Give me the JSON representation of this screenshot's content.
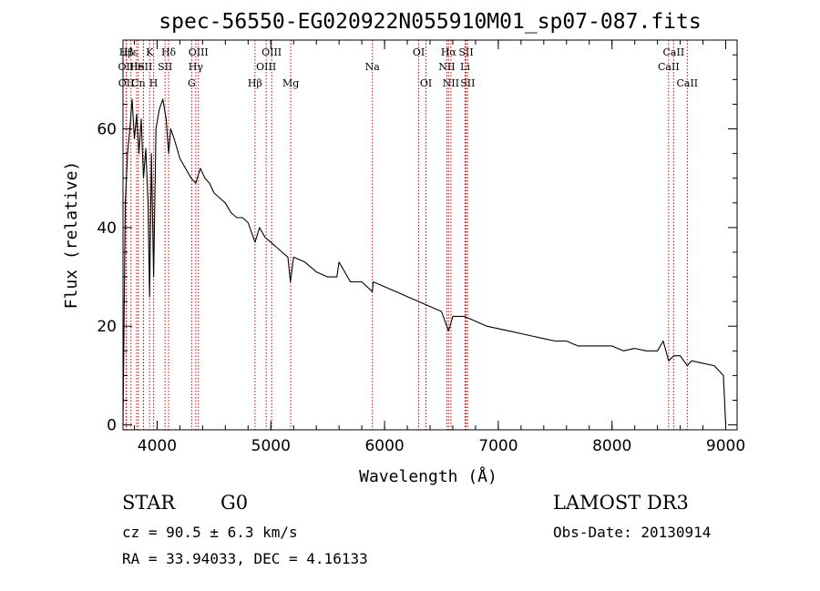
{
  "chart_data": {
    "type": "line",
    "title": "spec-56550-EG020922N055910M01_sp07-087.fits",
    "xlabel": "Wavelength (Å)",
    "ylabel": "Flux (relative)",
    "xlim": [
      3700,
      9100
    ],
    "ylim": [
      -1,
      78
    ],
    "x_ticks": [
      4000,
      5000,
      6000,
      7000,
      8000,
      9000
    ],
    "y_ticks": [
      0,
      20,
      40,
      60
    ],
    "series": [
      {
        "name": "spectrum",
        "x": [
          3700,
          3720,
          3740,
          3760,
          3780,
          3800,
          3820,
          3840,
          3860,
          3880,
          3900,
          3920,
          3934,
          3950,
          3969,
          3990,
          4020,
          4050,
          4080,
          4101,
          4120,
          4150,
          4200,
          4250,
          4300,
          4340,
          4380,
          4420,
          4460,
          4500,
          4550,
          4600,
          4650,
          4700,
          4750,
          4800,
          4861,
          4900,
          4950,
          5000,
          5050,
          5100,
          5150,
          5172,
          5200,
          5300,
          5400,
          5500,
          5580,
          5600,
          5650,
          5700,
          5800,
          5893,
          5900,
          6000,
          6100,
          6200,
          6300,
          6400,
          6500,
          6563,
          6600,
          6700,
          6800,
          6900,
          7000,
          7100,
          7200,
          7300,
          7400,
          7500,
          7600,
          7700,
          7800,
          8000,
          8100,
          8200,
          8300,
          8400,
          8450,
          8498,
          8542,
          8600,
          8662,
          8700,
          8800,
          8900,
          8980,
          9000
        ],
        "y": [
          0,
          45,
          55,
          60,
          66,
          58,
          63,
          55,
          62,
          50,
          56,
          45,
          26,
          55,
          30,
          60,
          64,
          66,
          62,
          55,
          60,
          58,
          54,
          52,
          50,
          49,
          52,
          50,
          49,
          47,
          46,
          45,
          43,
          42,
          42,
          41,
          37,
          40,
          38,
          37,
          36,
          35,
          34,
          29,
          34,
          33,
          31,
          30,
          30,
          33,
          31,
          29,
          29,
          27,
          29,
          28,
          27,
          26,
          25,
          24,
          23,
          19,
          22,
          22,
          21,
          20,
          19.5,
          19,
          18.5,
          18,
          17.5,
          17,
          17,
          16,
          16,
          16,
          15,
          15.5,
          15,
          15,
          17,
          13,
          14,
          14,
          12,
          13,
          12.5,
          12,
          10,
          0
        ]
      }
    ],
    "lines": [
      {
        "label": "Hβ",
        "wl": 3730,
        "row": 1
      },
      {
        "label": "OII",
        "wl": 3727,
        "row": 2
      },
      {
        "label": "OII",
        "wl": 3729,
        "row": 3
      },
      {
        "label": "Hε",
        "wl": 3770,
        "row": 1
      },
      {
        "label": "He",
        "wl": 3820,
        "row": 2
      },
      {
        "label": "Cn",
        "wl": 3835,
        "row": 3
      },
      {
        "label": "K",
        "wl": 3934,
        "row": 1
      },
      {
        "label": "lSII",
        "wl": 3880,
        "row": 2
      },
      {
        "label": "H",
        "wl": 3969,
        "row": 3
      },
      {
        "label": "Hδ",
        "wl": 4101,
        "row": 1
      },
      {
        "label": "SII",
        "wl": 4070,
        "row": 2
      },
      {
        "label": "OIII",
        "wl": 4363,
        "row": 1
      },
      {
        "label": "Hγ",
        "wl": 4340,
        "row": 2
      },
      {
        "label": "G",
        "wl": 4304,
        "row": 3
      },
      {
        "label": "Hβ",
        "wl": 4861,
        "row": 3
      },
      {
        "label": "OIII",
        "wl": 5007,
        "row": 1
      },
      {
        "label": "OIII",
        "wl": 4959,
        "row": 2
      },
      {
        "label": "Mg",
        "wl": 5175,
        "row": 3
      },
      {
        "label": "Na",
        "wl": 5893,
        "row": 2
      },
      {
        "label": "OI",
        "wl": 6300,
        "row": 1
      },
      {
        "label": "OI",
        "wl": 6364,
        "row": 3
      },
      {
        "label": "Hα",
        "wl": 6563,
        "row": 1
      },
      {
        "label": "SII",
        "wl": 6717,
        "row": 1
      },
      {
        "label": "NII",
        "wl": 6548,
        "row": 2
      },
      {
        "label": "Li",
        "wl": 6708,
        "row": 2
      },
      {
        "label": "NII",
        "wl": 6584,
        "row": 3
      },
      {
        "label": "SII",
        "wl": 6731,
        "row": 3
      },
      {
        "label": "CaII",
        "wl": 8542,
        "row": 1
      },
      {
        "label": "CaII",
        "wl": 8498,
        "row": 2
      },
      {
        "label": "CaII",
        "wl": 8662,
        "row": 3
      }
    ]
  },
  "info": {
    "object_type": "STAR",
    "subclass": "G0",
    "survey": "LAMOST DR3",
    "cz": "cz = 90.5 ± 6.3 km/s",
    "obs_date": "Obs-Date: 20130914",
    "coords": "RA =  33.94033, DEC =   4.16133"
  },
  "colors": {
    "spectrum": "#000000",
    "line_markers": "#cc0000",
    "axes": "#000000"
  }
}
